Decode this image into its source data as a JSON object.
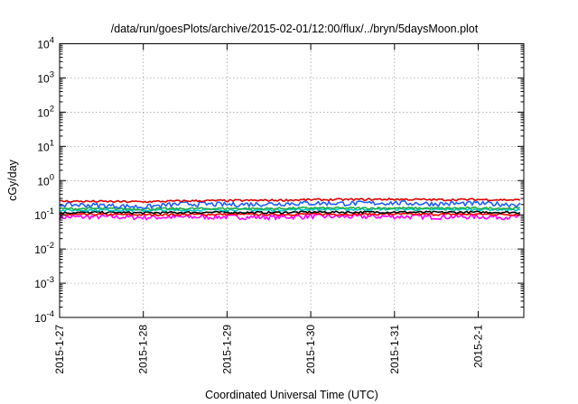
{
  "chart_data": {
    "type": "line",
    "title": "/data/run/goesPlots/archive/2015-02-01/12:00/flux/../bryn/5daysMoon.plot",
    "xlabel": "Coordinated Universal Time (UTC)",
    "ylabel": "cGy/day",
    "yscale": "log",
    "ylim": [
      0.0001,
      10000
    ],
    "xlim": [
      "2015-01-27",
      "2015-02-01 12:00"
    ],
    "x_tick_labels": [
      "2015-1-27",
      "2015-1-28",
      "2015-1-29",
      "2015-1-30",
      "2015-1-31",
      "2015-2-1"
    ],
    "y_tick_labels": [
      {
        "base": "10",
        "exp": "-4"
      },
      {
        "base": "10",
        "exp": "-3"
      },
      {
        "base": "10",
        "exp": "-2"
      },
      {
        "base": "10",
        "exp": "-1"
      },
      {
        "base": "10",
        "exp": "0"
      },
      {
        "base": "10",
        "exp": "1"
      },
      {
        "base": "10",
        "exp": "2"
      },
      {
        "base": "10",
        "exp": "3"
      },
      {
        "base": "10",
        "exp": "4"
      }
    ],
    "grid": true,
    "legend": "none",
    "series": [
      {
        "color": "#ff00ff",
        "x_days": [
          0,
          0.5,
          1,
          1.5,
          2,
          2.5,
          3,
          3.5,
          4,
          4.5,
          5,
          5.5
        ],
        "values": [
          0.085,
          0.088,
          0.084,
          0.086,
          0.087,
          0.085,
          0.09,
          0.088,
          0.089,
          0.087,
          0.088,
          0.086
        ]
      },
      {
        "color": "#ff0000",
        "x_days": [
          0,
          0.5,
          1,
          1.5,
          2,
          2.5,
          3,
          3.5,
          4,
          4.5,
          5,
          5.5
        ],
        "values": [
          0.1,
          0.103,
          0.1,
          0.102,
          0.103,
          0.102,
          0.105,
          0.104,
          0.105,
          0.103,
          0.104,
          0.102
        ]
      },
      {
        "color": "#000000",
        "x_days": [
          0,
          0.5,
          1,
          1.5,
          2,
          2.5,
          3,
          3.5,
          4,
          4.5,
          5,
          5.5
        ],
        "values": [
          0.115,
          0.118,
          0.114,
          0.117,
          0.118,
          0.116,
          0.12,
          0.119,
          0.12,
          0.118,
          0.119,
          0.117
        ]
      },
      {
        "color": "#00c8c8",
        "x_days": [
          0,
          0.5,
          1,
          1.5,
          2,
          2.5,
          3,
          3.5,
          4,
          4.5,
          5,
          5.5
        ],
        "values": [
          0.135,
          0.138,
          0.134,
          0.137,
          0.14,
          0.138,
          0.145,
          0.143,
          0.146,
          0.142,
          0.144,
          0.14
        ]
      },
      {
        "color": "#22aa44",
        "x_days": [
          0,
          0.5,
          1,
          1.5,
          2,
          2.5,
          3,
          3.5,
          4,
          4.5,
          5,
          5.5
        ],
        "values": [
          0.15,
          0.152,
          0.148,
          0.151,
          0.153,
          0.152,
          0.158,
          0.156,
          0.158,
          0.155,
          0.157,
          0.154
        ]
      },
      {
        "color": "#1f5fff",
        "x_days": [
          0,
          0.5,
          1,
          1.5,
          2,
          2.5,
          3,
          3.5,
          4,
          4.5,
          5,
          5.5
        ],
        "values": [
          0.2,
          0.19,
          0.17,
          0.21,
          0.2,
          0.21,
          0.22,
          0.215,
          0.225,
          0.21,
          0.215,
          0.2
        ]
      },
      {
        "color": "#dd0000",
        "x_days": [
          0,
          0.5,
          1,
          1.5,
          2,
          2.5,
          3,
          3.5,
          4,
          4.5,
          5,
          5.5
        ],
        "values": [
          0.25,
          0.245,
          0.24,
          0.255,
          0.26,
          0.265,
          0.275,
          0.28,
          0.285,
          0.275,
          0.28,
          0.27
        ]
      }
    ]
  }
}
